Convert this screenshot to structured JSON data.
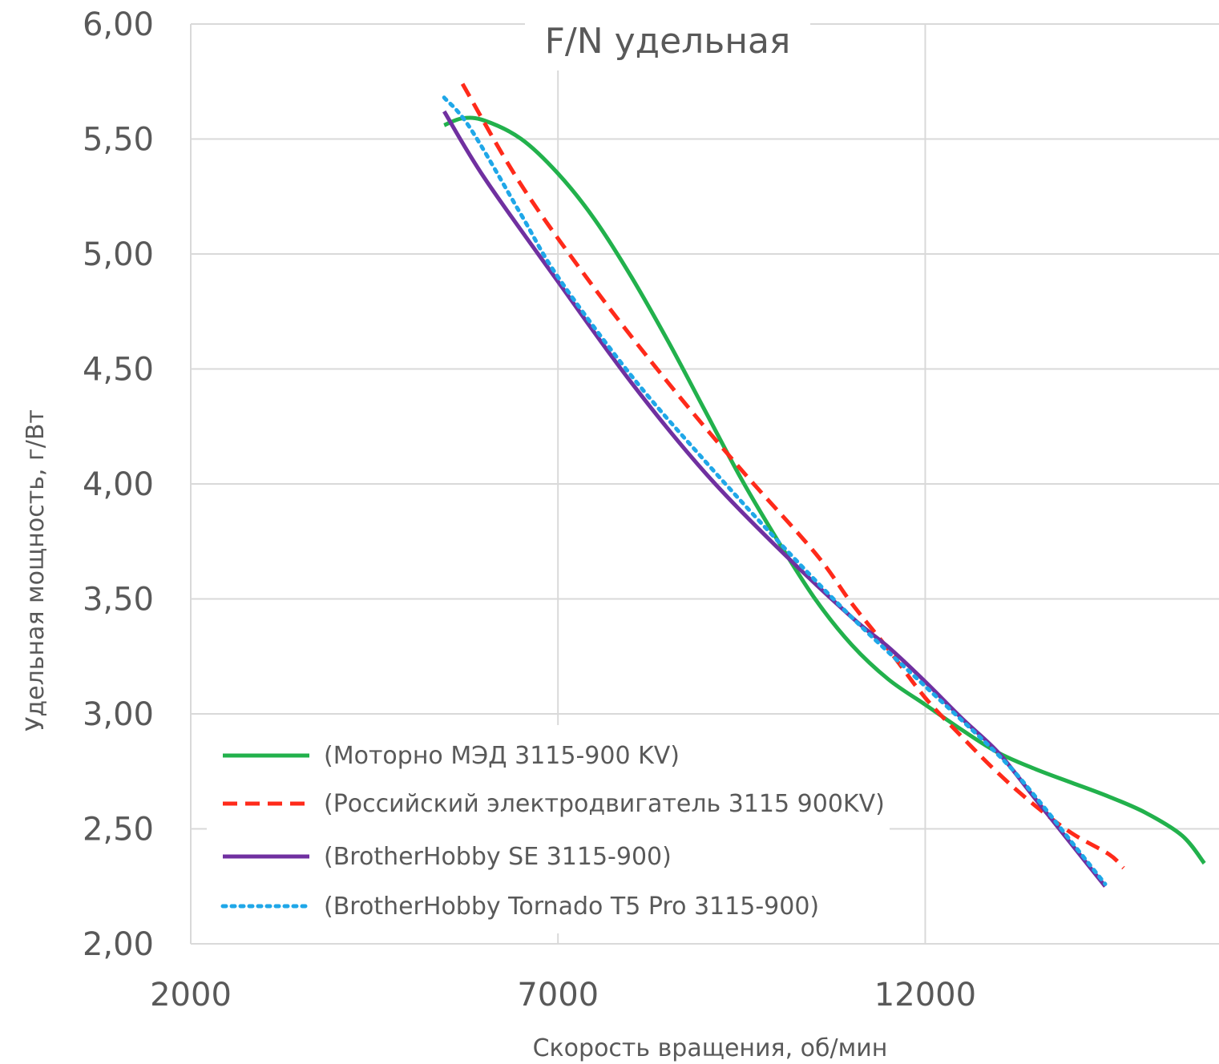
{
  "chart_data": {
    "type": "line",
    "title": "F/N удельная",
    "xlabel": "Скорость вращения, об/мин",
    "ylabel": "Удельная мощность,  г/Вт",
    "xlim": [
      2000,
      16000
    ],
    "ylim": [
      2.0,
      6.0
    ],
    "x_ticks": [
      2000,
      7000,
      12000
    ],
    "x_tick_labels": [
      "2000",
      "7000",
      "12000"
    ],
    "y_ticks": [
      2.0,
      2.5,
      3.0,
      3.5,
      4.0,
      4.5,
      5.0,
      5.5,
      6.0
    ],
    "y_tick_labels": [
      "2,00",
      "2,50",
      "3,00",
      "3,50",
      "4,00",
      "4,50",
      "5,00",
      "5,50",
      "6,00"
    ],
    "grid": true,
    "legend_position": "bottom-left",
    "series": [
      {
        "name": "(Моторно МЭД 3115-900 KV)",
        "color": "#22b14c",
        "style": "solid",
        "points": [
          [
            5450,
            5.56
          ],
          [
            5700,
            5.59
          ],
          [
            6000,
            5.58
          ],
          [
            6500,
            5.5
          ],
          [
            7000,
            5.35
          ],
          [
            7500,
            5.15
          ],
          [
            8000,
            4.9
          ],
          [
            8500,
            4.62
          ],
          [
            9000,
            4.32
          ],
          [
            9500,
            4.02
          ],
          [
            10000,
            3.75
          ],
          [
            10500,
            3.5
          ],
          [
            11000,
            3.3
          ],
          [
            11500,
            3.15
          ],
          [
            12000,
            3.04
          ],
          [
            12500,
            2.93
          ],
          [
            13000,
            2.83
          ],
          [
            13500,
            2.76
          ],
          [
            14000,
            2.7
          ],
          [
            14500,
            2.64
          ],
          [
            15000,
            2.57
          ],
          [
            15500,
            2.47
          ],
          [
            15800,
            2.35
          ]
        ]
      },
      {
        "name": "(Российский электродвигатель 3115 900KV)",
        "color": "#ff2a1a",
        "style": "dashed",
        "points": [
          [
            5700,
            5.74
          ],
          [
            6500,
            5.3
          ],
          [
            7500,
            4.85
          ],
          [
            8500,
            4.44
          ],
          [
            9500,
            4.06
          ],
          [
            10500,
            3.7
          ],
          [
            11000,
            3.48
          ],
          [
            11500,
            3.28
          ],
          [
            12000,
            3.07
          ],
          [
            12500,
            2.9
          ],
          [
            13000,
            2.74
          ],
          [
            13500,
            2.6
          ],
          [
            14000,
            2.48
          ],
          [
            14500,
            2.39
          ],
          [
            14700,
            2.33
          ]
        ]
      },
      {
        "name": "(BrotherHobby SE 3115-900)",
        "color": "#7030a0",
        "style": "solid",
        "points": [
          [
            5450,
            5.62
          ],
          [
            6000,
            5.33
          ],
          [
            7000,
            4.88
          ],
          [
            8000,
            4.44
          ],
          [
            9000,
            4.05
          ],
          [
            10000,
            3.72
          ],
          [
            11000,
            3.42
          ],
          [
            11500,
            3.29
          ],
          [
            12000,
            3.14
          ],
          [
            12500,
            2.98
          ],
          [
            13000,
            2.83
          ],
          [
            13500,
            2.63
          ],
          [
            14000,
            2.43
          ],
          [
            14450,
            2.25
          ]
        ]
      },
      {
        "name": "(BrotherHobby Tornado T5 Pro 3115-900)",
        "color": "#1fa7e8",
        "style": "dotted",
        "points": [
          [
            5450,
            5.68
          ],
          [
            5800,
            5.55
          ],
          [
            6500,
            5.17
          ],
          [
            7000,
            4.9
          ],
          [
            8000,
            4.47
          ],
          [
            9000,
            4.1
          ],
          [
            10000,
            3.75
          ],
          [
            11000,
            3.42
          ],
          [
            12000,
            3.12
          ],
          [
            13000,
            2.82
          ],
          [
            13500,
            2.64
          ],
          [
            14000,
            2.44
          ],
          [
            14450,
            2.26
          ]
        ]
      }
    ]
  }
}
